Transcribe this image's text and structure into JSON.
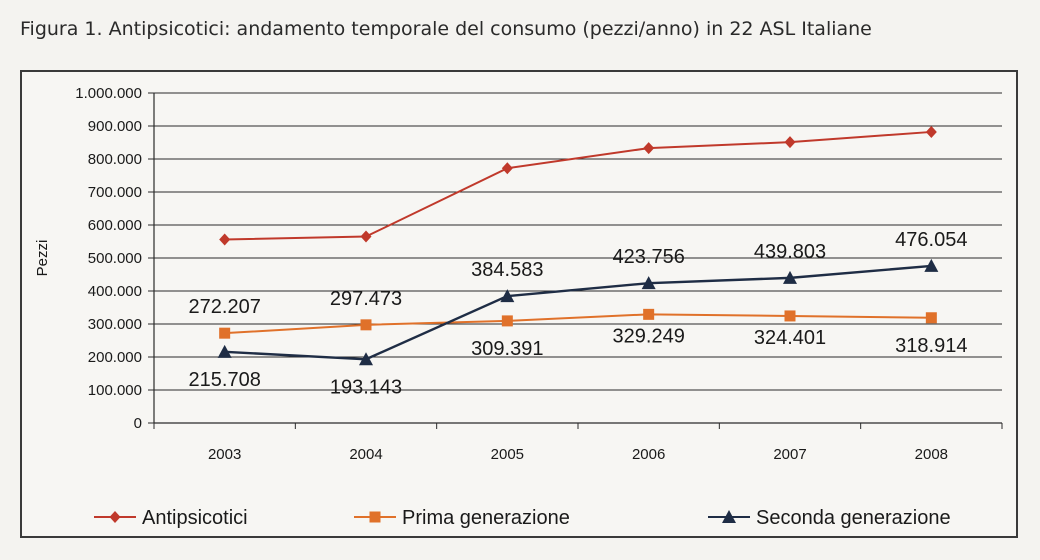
{
  "caption": "Figura 1. Antipsicotici: andamento temporale del consumo (pezzi/anno) in 22 ASL Italiane",
  "chart_data": {
    "type": "line",
    "title": "",
    "xlabel": "",
    "ylabel": "Pezzi",
    "categories": [
      "2003",
      "2004",
      "2005",
      "2006",
      "2007",
      "2008"
    ],
    "ylim": [
      0,
      1000000
    ],
    "yticks": [
      0,
      100000,
      200000,
      300000,
      400000,
      500000,
      600000,
      700000,
      800000,
      900000,
      1000000
    ],
    "ytick_labels": [
      "0",
      "100.000",
      "200.000",
      "300.000",
      "400.000",
      "500.000",
      "600.000",
      "700.000",
      "800.000",
      "900.000",
      "1.000.000"
    ],
    "grid": "horizontal",
    "legend_position": "bottom",
    "series": [
      {
        "name": "Antipsicotici",
        "color": "#c0392b",
        "marker": "diamond",
        "values": [
          556000,
          565000,
          772000,
          833000,
          851000,
          882000
        ],
        "labels": []
      },
      {
        "name": "Prima generazione",
        "color": "#e0712a",
        "marker": "square",
        "values": [
          272207,
          297473,
          309391,
          329249,
          324401,
          318914
        ],
        "labels": [
          "272.207",
          "297.473",
          "309.391",
          "329.249",
          "324.401",
          "318.914"
        ]
      },
      {
        "name": "Seconda generazione",
        "color": "#1f2d45",
        "marker": "triangle",
        "values": [
          215708,
          193143,
          384583,
          423756,
          439803,
          476054
        ],
        "labels": [
          "215.708",
          "193.143",
          "384.583",
          "423.756",
          "439.803",
          "476.054"
        ]
      }
    ]
  }
}
